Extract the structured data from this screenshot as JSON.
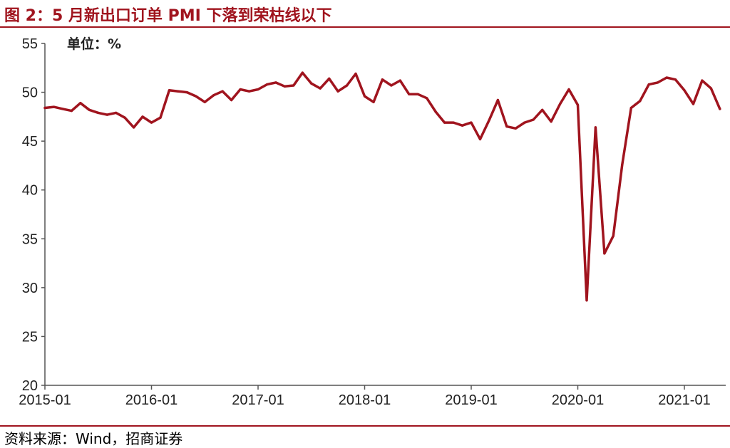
{
  "header": {
    "title": "图 2：5 月新出口订单 PMI 下落到荣枯线以下"
  },
  "footer": {
    "source": "资料来源：Wind，招商证券"
  },
  "chart_data": {
    "type": "line",
    "unit_label": "单位：%",
    "ylim": [
      20,
      55
    ],
    "yticks": [
      "55",
      "50",
      "45",
      "40",
      "35",
      "30",
      "25",
      "20"
    ],
    "xticks": [
      "2015-01",
      "2016-01",
      "2017-01",
      "2018-01",
      "2019-01",
      "2020-01",
      "2021-01"
    ],
    "color": "#a0141e",
    "series": [
      {
        "x": [
          "2015-01",
          "2015-02",
          "2015-03",
          "2015-04",
          "2015-05",
          "2015-06",
          "2015-07",
          "2015-08",
          "2015-09",
          "2015-10",
          "2015-11",
          "2015-12",
          "2016-01",
          "2016-02",
          "2016-03",
          "2016-04",
          "2016-05",
          "2016-06",
          "2016-07",
          "2016-08",
          "2016-09",
          "2016-10",
          "2016-11",
          "2016-12",
          "2017-01",
          "2017-02",
          "2017-03",
          "2017-04",
          "2017-05",
          "2017-06",
          "2017-07",
          "2017-08",
          "2017-09",
          "2017-10",
          "2017-11",
          "2017-12",
          "2018-01",
          "2018-02",
          "2018-03",
          "2018-04",
          "2018-05",
          "2018-06",
          "2018-07",
          "2018-08",
          "2018-09",
          "2018-10",
          "2018-11",
          "2018-12",
          "2019-01",
          "2019-02",
          "2019-03",
          "2019-04",
          "2019-05",
          "2019-06",
          "2019-07",
          "2019-08",
          "2019-09",
          "2019-10",
          "2019-11",
          "2019-12",
          "2020-01",
          "2020-02",
          "2020-03",
          "2020-04",
          "2020-05",
          "2020-06",
          "2020-07",
          "2020-08",
          "2020-09",
          "2020-10",
          "2020-11",
          "2020-12",
          "2021-01",
          "2021-02",
          "2021-03",
          "2021-04",
          "2021-05"
        ],
        "values": [
          48.4,
          48.5,
          48.3,
          48.1,
          48.9,
          48.2,
          47.9,
          47.7,
          47.9,
          47.4,
          46.4,
          47.5,
          46.9,
          47.4,
          50.2,
          50.1,
          50.0,
          49.6,
          49.0,
          49.7,
          50.1,
          49.2,
          50.3,
          50.1,
          50.3,
          50.8,
          51.0,
          50.6,
          50.7,
          52.0,
          50.9,
          50.4,
          51.4,
          50.1,
          50.7,
          51.9,
          49.6,
          49.0,
          51.3,
          50.7,
          51.2,
          49.8,
          49.8,
          49.4,
          48.0,
          46.9,
          46.9,
          46.6,
          46.9,
          45.2,
          47.1,
          49.2,
          46.5,
          46.3,
          46.9,
          47.2,
          48.2,
          47.0,
          48.8,
          50.3,
          48.7,
          28.7,
          46.4,
          33.5,
          35.3,
          42.6,
          48.4,
          49.1,
          50.8,
          51.0,
          51.5,
          51.3,
          50.2,
          48.8,
          51.2,
          50.4,
          48.3
        ]
      }
    ]
  }
}
